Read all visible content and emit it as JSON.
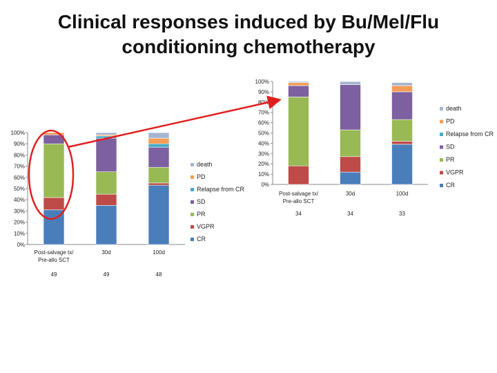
{
  "slide": {
    "title_line1": "Clinical responses induced by Bu/Mel/Flu",
    "title_line2": "conditioning chemotherapy"
  },
  "legend_order": [
    "death",
    "PD",
    "Relapse from CR",
    "SD",
    "PR",
    "VGPR",
    "CR"
  ],
  "colors": {
    "CR": "#4a7ebb",
    "VGPR": "#be4b48",
    "PR": "#98b954",
    "SD": "#7d60a0",
    "Relapse from CR": "#46aac5",
    "PD": "#f59d56",
    "death": "#a5b6d1",
    "highlight": "#e02020",
    "arrow": "#e02020",
    "axis": "#888888"
  },
  "chart_data": [
    {
      "type": "bar",
      "stacked": true,
      "categories": [
        "Post-salvage tx/ Pre-allo SCT",
        "30d",
        "100d"
      ],
      "n_values": [
        "49",
        "49",
        "48"
      ],
      "ylim": [
        0,
        100
      ],
      "yticks": [
        "0%",
        "10%",
        "20%",
        "30%",
        "40%",
        "50%",
        "60%",
        "70%",
        "80%",
        "90%",
        "100%"
      ],
      "series": [
        {
          "name": "CR",
          "values": [
            31,
            35,
            53
          ]
        },
        {
          "name": "VGPR",
          "values": [
            11,
            10,
            2
          ]
        },
        {
          "name": "PR",
          "values": [
            48,
            20,
            14
          ]
        },
        {
          "name": "SD",
          "values": [
            8,
            30,
            18
          ]
        },
        {
          "name": "Relapse from CR",
          "values": [
            0,
            2,
            3
          ]
        },
        {
          "name": "PD",
          "values": [
            2,
            1,
            5
          ]
        },
        {
          "name": "death",
          "values": [
            0,
            2,
            5
          ]
        }
      ]
    },
    {
      "type": "bar",
      "stacked": true,
      "categories": [
        "Post-salvage tx/ Pre-allo SCT",
        "30d",
        "100d"
      ],
      "n_values": [
        "34",
        "34",
        "33"
      ],
      "ylim": [
        0,
        100
      ],
      "yticks": [
        "0%",
        "10%",
        "20%",
        "30%",
        "40%",
        "50%",
        "60%",
        "70%",
        "80%",
        "90%",
        "100%"
      ],
      "series": [
        {
          "name": "CR",
          "values": [
            0,
            12,
            39
          ]
        },
        {
          "name": "VGPR",
          "values": [
            18,
            15,
            3
          ]
        },
        {
          "name": "PR",
          "values": [
            67,
            26,
            21
          ]
        },
        {
          "name": "SD",
          "values": [
            11,
            44,
            27
          ]
        },
        {
          "name": "Relapse from CR",
          "values": [
            0,
            0,
            0
          ]
        },
        {
          "name": "PD",
          "values": [
            3,
            0,
            6
          ]
        },
        {
          "name": "death",
          "values": [
            1,
            3,
            3
          ]
        }
      ]
    }
  ]
}
